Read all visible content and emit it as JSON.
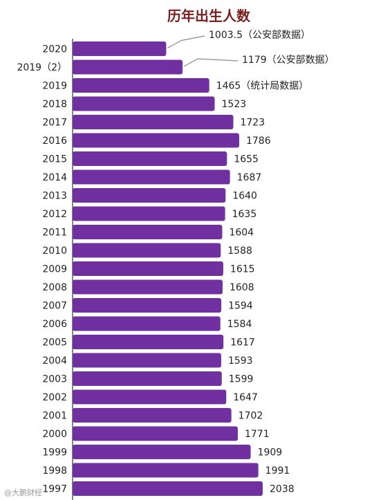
{
  "chart_data": {
    "type": "bar",
    "orientation": "horizontal",
    "title": "历年出生人数",
    "xlabel": "",
    "ylabel": "",
    "categories": [
      "2020",
      "2019（2）",
      "2019",
      "2018",
      "2017",
      "2016",
      "2015",
      "2014",
      "2013",
      "2012",
      "2011",
      "2010",
      "2009",
      "2008",
      "2007",
      "2006",
      "2005",
      "2004",
      "2003",
      "2002",
      "2001",
      "2000",
      "1999",
      "1998",
      "1997"
    ],
    "values": [
      1003.5,
      1179,
      1465,
      1523,
      1723,
      1786,
      1655,
      1687,
      1640,
      1635,
      1604,
      1588,
      1615,
      1608,
      1594,
      1584,
      1617,
      1593,
      1599,
      1647,
      1702,
      1771,
      1909,
      1991,
      2038
    ],
    "value_labels": [
      "1003.5（公安部数据）",
      "1179（公安部数据）",
      "1465（统计局数据）",
      "1523",
      "1723",
      "1786",
      "1655",
      "1687",
      "1640",
      "1635",
      "1604",
      "1588",
      "1615",
      "1608",
      "1594",
      "1584",
      "1617",
      "1593",
      "1599",
      "1647",
      "1702",
      "1771",
      "1909",
      "1991",
      "2038"
    ],
    "xlim": [
      0,
      2038
    ],
    "bar_color": "#7030a0",
    "grid": false,
    "legend": "none"
  },
  "watermark": "@大鹏财经"
}
